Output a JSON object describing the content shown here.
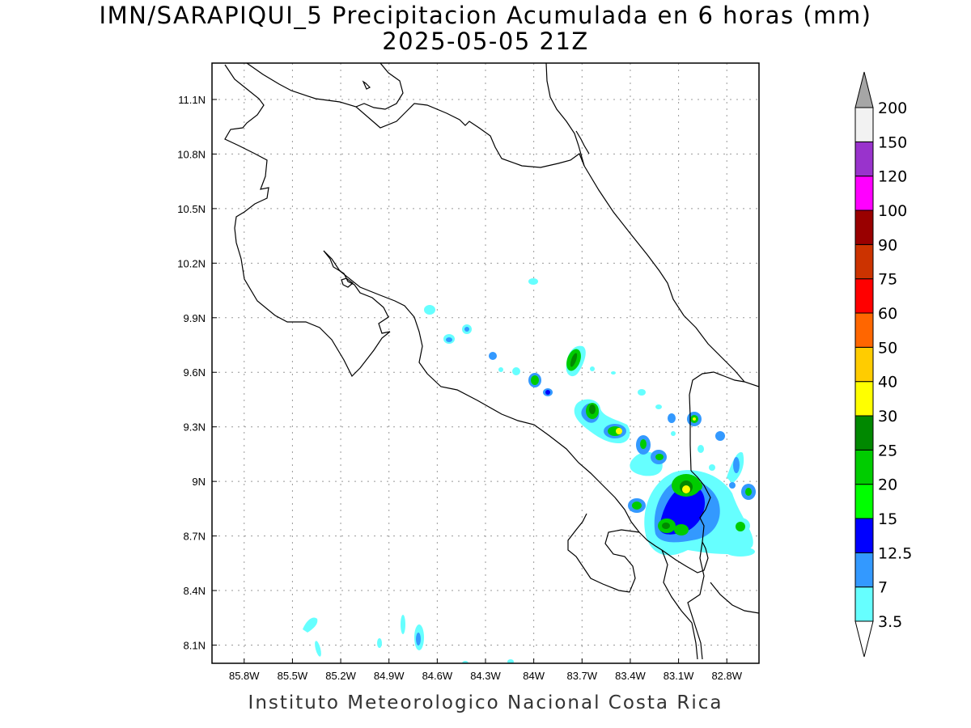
{
  "title_line1": "IMN/SARAPIQUI_5 Precipitacion Acumulada en 6 horas (mm)",
  "title_line2": "2025-05-05 21Z",
  "footer": "Instituto Meteorologico Nacional Costa Rica",
  "map": {
    "lon_range": [
      -86.0,
      -82.6
    ],
    "lat_range": [
      8.0,
      11.3
    ],
    "x_ticks": [
      "85.8W",
      "85.5W",
      "85.2W",
      "84.9W",
      "84.6W",
      "84.3W",
      "84W",
      "83.7W",
      "83.4W",
      "83.1W",
      "82.8W"
    ],
    "y_ticks": [
      "11.1N",
      "10.8N",
      "10.5N",
      "10.2N",
      "9.9N",
      "9.6N",
      "9.3N",
      "9N",
      "8.7N",
      "8.4N",
      "8.1N"
    ],
    "grid": true
  },
  "colorbar": {
    "labels": [
      "3.5",
      "7",
      "12.5",
      "15",
      "20",
      "25",
      "30",
      "40",
      "50",
      "60",
      "75",
      "90",
      "100",
      "120",
      "150",
      "200"
    ],
    "colors": [
      "#66ffff",
      "#3399ff",
      "#0000ff",
      "#00ff00",
      "#00cc00",
      "#008800",
      "#ffff00",
      "#ffcc00",
      "#ff6600",
      "#ff0000",
      "#cc3300",
      "#990000",
      "#ff00ff",
      "#9933cc",
      "#f2f2f2",
      "#a6a6a6"
    ]
  }
}
